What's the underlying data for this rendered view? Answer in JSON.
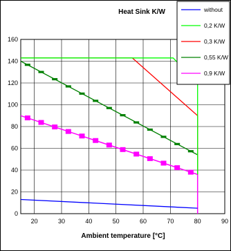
{
  "chart_data": {
    "type": "line",
    "title": "Heat Sink K/W",
    "xlabel": "Ambient temperature  [°C]",
    "ylabel": "",
    "xlim": [
      15,
      90
    ],
    "ylim": [
      0,
      160
    ],
    "x_ticks": [
      "20",
      "30",
      "40",
      "50",
      "60",
      "70",
      "80",
      "90"
    ],
    "y_ticks": [
      "0",
      "20",
      "40",
      "60",
      "80",
      "100",
      "120",
      "140",
      "160"
    ],
    "grid": "vertical-and-horizontal",
    "legend_position": "top-right",
    "series": [
      {
        "name": "without",
        "color": "#0000ff",
        "marker": "none",
        "x": [
          15,
          80
        ],
        "y": [
          13,
          5
        ]
      },
      {
        "name": "0,2 K/W",
        "color": "#00ff00",
        "marker": "none",
        "x": [
          15,
          56,
          71,
          80,
          80
        ],
        "y": [
          143,
          143,
          143,
          120,
          36
        ]
      },
      {
        "name": "0,3 K/W",
        "color": "#ff0000",
        "marker": "none",
        "x": [
          15,
          56,
          80,
          80
        ],
        "y": [
          143,
          143,
          90,
          36
        ]
      },
      {
        "name": "0,55 K/W",
        "color": "#008000",
        "marker": "tick",
        "x": [
          15,
          80,
          80
        ],
        "y": [
          140,
          54,
          36
        ]
      },
      {
        "name": "0,9 K/W",
        "color": "#ff00ff",
        "marker": "square",
        "x": [
          15,
          80,
          80
        ],
        "y": [
          90,
          36,
          0
        ]
      }
    ]
  }
}
